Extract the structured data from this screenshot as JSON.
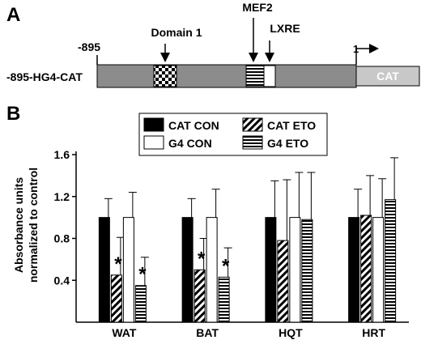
{
  "panel_a": {
    "label": "A",
    "start_label": "-895",
    "construct_label": "-895-HG4-CAT",
    "domain1_label": "Domain 1",
    "mef2_label": "MEF2",
    "lxre_label": "LXRE",
    "tss_label": "1",
    "cat_label": "CAT"
  },
  "panel_b": {
    "label": "B"
  },
  "chart_data": {
    "type": "bar",
    "ylabel": "Absorbance units normalized to control",
    "ylabel_lines": [
      "Absorbance units",
      "normalized to control"
    ],
    "ylim": [
      0,
      1.6
    ],
    "yticks": [
      0.4,
      0.8,
      1.2,
      1.6
    ],
    "ytick_labels": [
      "0.4",
      "0.8",
      "1.2",
      "1.6"
    ],
    "categories": [
      "WAT",
      "BAT",
      "HQT",
      "HRT"
    ],
    "legend_position": "top",
    "series": [
      {
        "name": "CAT CON",
        "pattern": "solid-black",
        "values": [
          1.0,
          1.0,
          1.0,
          1.0
        ],
        "errors": [
          0.18,
          0.18,
          0.35,
          0.27
        ],
        "significant": [
          false,
          false,
          false,
          false
        ]
      },
      {
        "name": "CAT ETO",
        "pattern": "diagonal-stripes",
        "values": [
          0.45,
          0.5,
          0.78,
          1.02
        ],
        "errors": [
          0.36,
          0.3,
          0.58,
          0.38
        ],
        "significant": [
          true,
          true,
          false,
          false
        ]
      },
      {
        "name": "G4 CON",
        "pattern": "white",
        "values": [
          1.0,
          1.0,
          1.0,
          1.0
        ],
        "errors": [
          0.24,
          0.27,
          0.43,
          0.37
        ],
        "significant": [
          false,
          false,
          false,
          false
        ]
      },
      {
        "name": "G4 ETO",
        "pattern": "horizontal-stripes",
        "values": [
          0.35,
          0.43,
          0.98,
          1.17
        ],
        "errors": [
          0.27,
          0.28,
          0.45,
          0.4
        ],
        "significant": [
          true,
          true,
          false,
          false
        ]
      }
    ],
    "significance_marker": "*"
  }
}
